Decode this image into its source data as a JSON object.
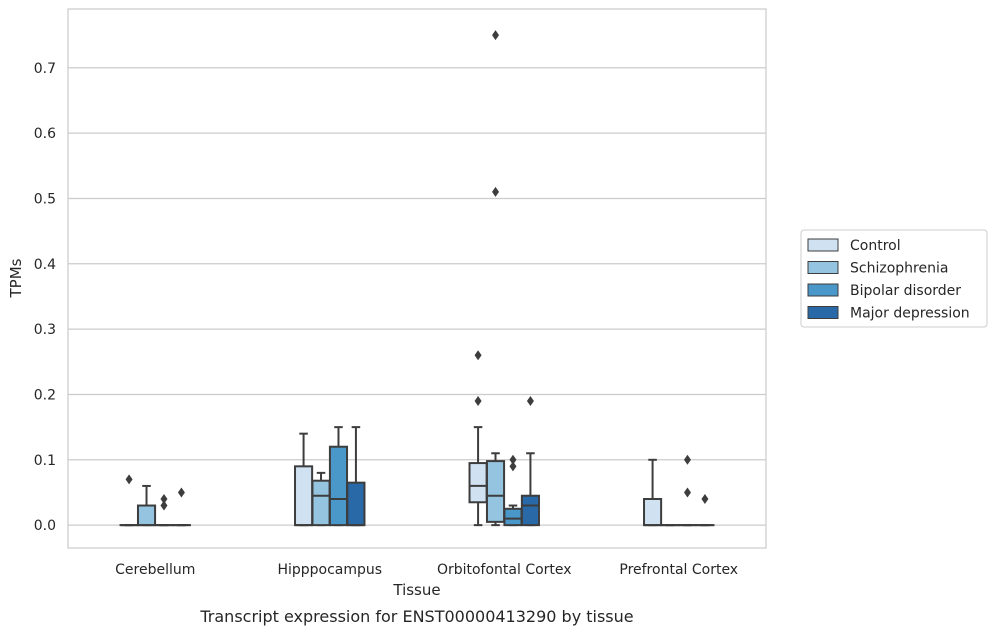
{
  "chart_data": {
    "type": "box",
    "xlabel": "Tissue",
    "ylabel": "TPMs",
    "caption": "Transcript expression for ENST00000413290 by tissue",
    "ylim": [
      -0.035,
      0.79
    ],
    "yticks": [
      0.0,
      0.1,
      0.2,
      0.3,
      0.4,
      0.5,
      0.6,
      0.7
    ],
    "ytick_labels": [
      "0.0",
      "0.1",
      "0.2",
      "0.3",
      "0.4",
      "0.5",
      "0.6",
      "0.7"
    ],
    "grid": "horizontal",
    "legend_position": "right",
    "categories": [
      "Cerebellum",
      "Hipppocampus",
      "Orbitofontal Cortex",
      "Prefrontal Cortex"
    ],
    "series": [
      {
        "name": "Control",
        "color": "#d0e1f2",
        "boxes": [
          {
            "min": 0,
            "q1": 0,
            "median": 0,
            "q3": 0,
            "max": 0,
            "outliers": [
              0.07
            ]
          },
          {
            "min": 0,
            "q1": 0,
            "median": 0,
            "q3": 0.09,
            "max": 0.14,
            "outliers": []
          },
          {
            "min": 0,
            "q1": 0.035,
            "median": 0.06,
            "q3": 0.095,
            "max": 0.15,
            "outliers": [
              0.19,
              0.26
            ]
          },
          {
            "min": 0,
            "q1": 0,
            "median": 0,
            "q3": 0.04,
            "max": 0.1,
            "outliers": []
          }
        ]
      },
      {
        "name": "Schizophrenia",
        "color": "#94c4df",
        "boxes": [
          {
            "min": 0,
            "q1": 0,
            "median": 0,
            "q3": 0.03,
            "max": 0.06,
            "outliers": []
          },
          {
            "min": 0,
            "q1": 0,
            "median": 0.045,
            "q3": 0.068,
            "max": 0.08,
            "outliers": []
          },
          {
            "min": 0,
            "q1": 0.005,
            "median": 0.045,
            "q3": 0.098,
            "max": 0.11,
            "outliers": [
              0.51,
              0.75
            ]
          },
          {
            "min": 0,
            "q1": 0,
            "median": 0,
            "q3": 0,
            "max": 0,
            "outliers": []
          }
        ]
      },
      {
        "name": "Bipolar disorder",
        "color": "#4a98c9",
        "boxes": [
          {
            "min": 0,
            "q1": 0,
            "median": 0,
            "q3": 0,
            "max": 0,
            "outliers": [
              0.03,
              0.04
            ]
          },
          {
            "min": 0,
            "q1": 0,
            "median": 0.04,
            "q3": 0.12,
            "max": 0.15,
            "outliers": []
          },
          {
            "min": 0,
            "q1": 0,
            "median": 0.01,
            "q3": 0.025,
            "max": 0.03,
            "outliers": [
              0.09,
              0.1
            ]
          },
          {
            "min": 0,
            "q1": 0,
            "median": 0,
            "q3": 0,
            "max": 0,
            "outliers": [
              0.05,
              0.1
            ]
          }
        ]
      },
      {
        "name": "Major depression",
        "color": "#2a69a8",
        "boxes": [
          {
            "min": 0,
            "q1": 0,
            "median": 0,
            "q3": 0,
            "max": 0,
            "outliers": [
              0.05
            ]
          },
          {
            "min": 0,
            "q1": 0,
            "median": 0,
            "q3": 0.065,
            "max": 0.15,
            "outliers": []
          },
          {
            "min": 0,
            "q1": 0,
            "median": 0.03,
            "q3": 0.045,
            "max": 0.11,
            "outliers": [
              0.19
            ]
          },
          {
            "min": 0,
            "q1": 0,
            "median": 0,
            "q3": 0,
            "max": 0,
            "outliers": [
              0.04
            ]
          }
        ]
      }
    ]
  }
}
